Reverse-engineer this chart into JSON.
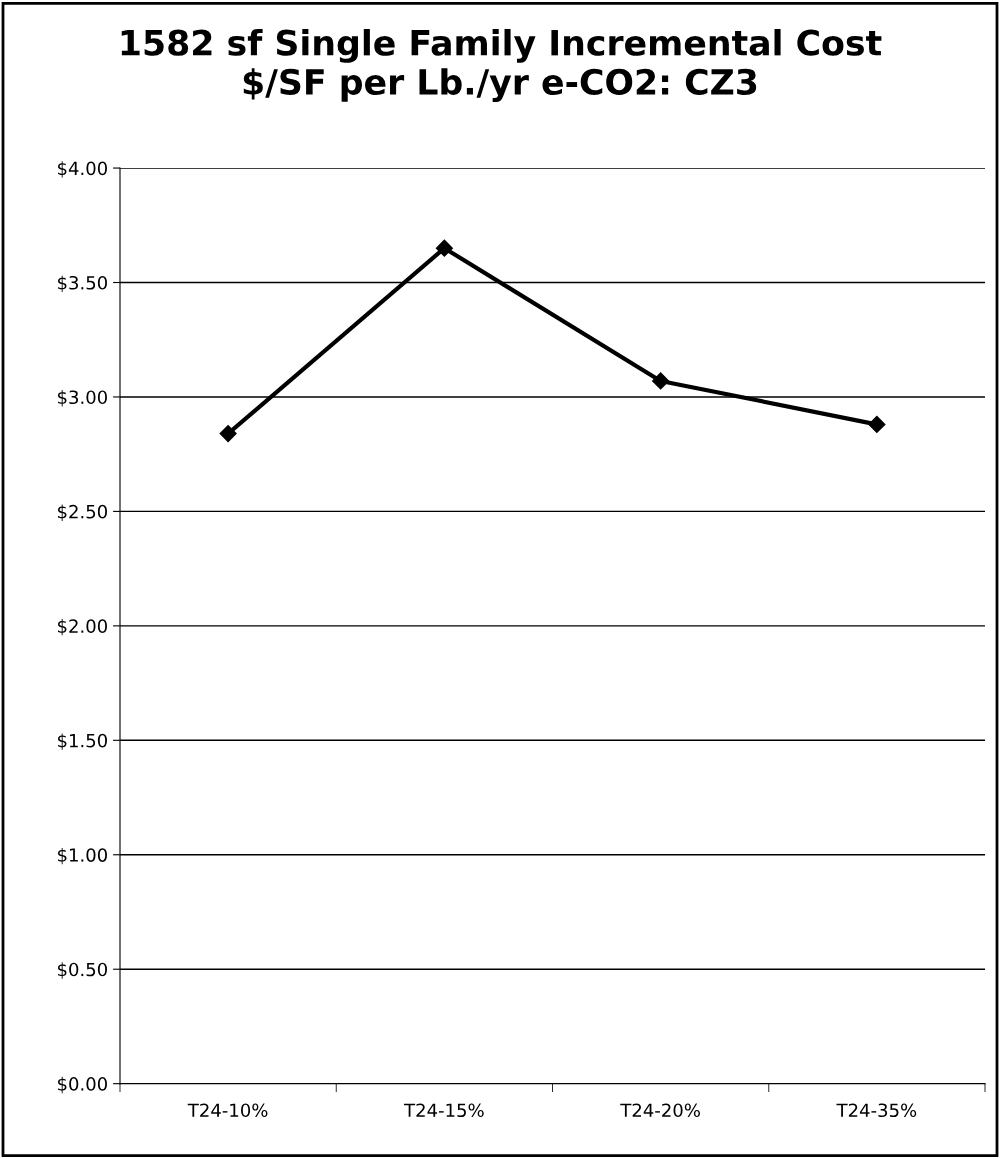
{
  "chart_data": {
    "type": "line",
    "title": "1582 sf Single Family Incremental Cost\n$/SF per Lb./yr e-CO2: CZ3",
    "categories": [
      "T24-10%",
      "T24-15%",
      "T24-20%",
      "T24-35%"
    ],
    "series": [
      {
        "color": "#000000",
        "values": [
          2.84,
          3.65,
          3.07,
          2.88
        ]
      }
    ],
    "ylim": [
      0,
      4
    ],
    "yticks": [
      {
        "value": 0,
        "label": "$0.00"
      },
      {
        "value": 0.5,
        "label": "$0.50"
      },
      {
        "value": 1,
        "label": "$1.00"
      },
      {
        "value": 1.5,
        "label": "$1.50"
      },
      {
        "value": 2,
        "label": "$2.00"
      },
      {
        "value": 2.5,
        "label": "$2.50"
      },
      {
        "value": 3,
        "label": "$3.00"
      },
      {
        "value": 3.5,
        "label": "$3.50"
      },
      {
        "value": 4,
        "label": "$4.00"
      }
    ],
    "grid": "y",
    "marker": "diamond",
    "line_style": "solid"
  }
}
